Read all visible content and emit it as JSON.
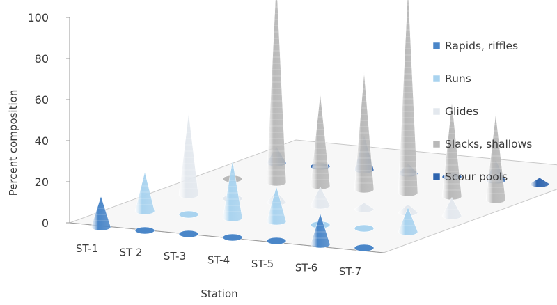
{
  "chart_data": {
    "type": "bar",
    "subtype": "3d-cone",
    "categories": [
      "ST-1",
      "ST 2",
      "ST-3",
      "ST-4",
      "ST-5",
      "ST-6",
      "ST-7"
    ],
    "series": [
      {
        "name": "Rapids, riffles",
        "color": "#4a86c8",
        "values": [
          15,
          1,
          1,
          1,
          1,
          15,
          1
        ]
      },
      {
        "name": "Runs",
        "color": "#a9d3ef",
        "values": [
          19,
          1,
          28,
          17,
          2,
          2,
          12
        ]
      },
      {
        "name": "Glides",
        "color": "#e3e8ee",
        "values": [
          40,
          2,
          5,
          9,
          3,
          4,
          9
        ]
      },
      {
        "name": "Slacks, shallows",
        "color": "#b9b9b9",
        "values": [
          1,
          99,
          45,
          57,
          100,
          46,
          42
        ]
      },
      {
        "name": "Scour pools",
        "color": "#2e64ae",
        "values": [
          8,
          1,
          17,
          5,
          1,
          10,
          3
        ]
      }
    ],
    "xlabel": "Station",
    "ylabel": "Percent composition",
    "ylim": [
      0,
      100
    ],
    "yticks": [
      0,
      20,
      40,
      60,
      80,
      100
    ],
    "legend_position": "right",
    "grid": false
  }
}
